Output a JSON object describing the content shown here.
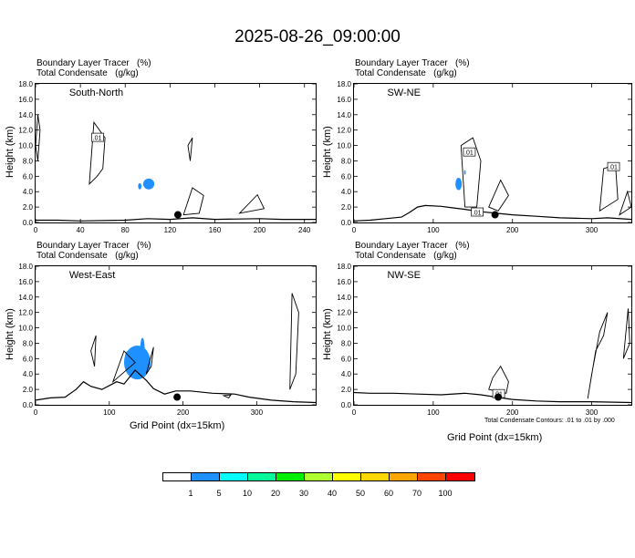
{
  "title": "2025-08-26_09:00:00",
  "panel_header": {
    "line1": "Boundary Layer Tracer   (%)",
    "line2": "Total Condensate   (g/kg)"
  },
  "y_axis_title": "Height (km)",
  "x_axis_title": "Grid Point (dx=15km)",
  "footnote": "Total Condensate Contours: .01 to .01 by .000",
  "colorbar": {
    "colors": [
      "#ffffff",
      "#1e90ff",
      "#00ffff",
      "#00fa9a",
      "#00ee00",
      "#adff2f",
      "#ffff00",
      "#ffd700",
      "#ffa500",
      "#ff4500",
      "#ff0000"
    ],
    "labels": [
      "1",
      "5",
      "10",
      "20",
      "30",
      "40",
      "50",
      "60",
      "70",
      "100"
    ]
  },
  "chart_data": [
    {
      "type": "contour",
      "panel_label": "South-North",
      "xlim": [
        0,
        250
      ],
      "ylim": [
        0,
        18
      ],
      "xticks": [
        "0",
        "40",
        "80",
        "120",
        "160",
        "200",
        "240"
      ],
      "yticks": [
        "0.0",
        "2.0",
        "4.0",
        "6.0",
        "8.0",
        "10.0",
        "12.0",
        "14.0",
        "16.0",
        "18.0"
      ],
      "contour_labels": [
        {
          "text": ".01",
          "x": 55,
          "y": 11
        }
      ],
      "marker": {
        "x": 127,
        "y": 1.0
      },
      "tracer_blobs": [
        {
          "x": 101,
          "y": 5.0,
          "rx": 5,
          "ry": 0.7
        },
        {
          "x": 93,
          "y": 4.7,
          "rx": 1.5,
          "ry": 0.4
        }
      ]
    },
    {
      "type": "contour",
      "panel_label": "SW-NE",
      "xlim": [
        0,
        350
      ],
      "ylim": [
        0,
        18
      ],
      "xticks": [
        "0",
        "100",
        "200",
        "300"
      ],
      "yticks": [
        "0.0",
        "2.0",
        "4.0",
        "6.0",
        "8.0",
        "10.0",
        "12.0",
        "14.0",
        "16.0",
        "18.0"
      ],
      "contour_labels": [
        {
          "text": ".01",
          "x": 155,
          "y": 1.3
        },
        {
          "text": ".01",
          "x": 145,
          "y": 9.1
        },
        {
          "text": ".01",
          "x": 327,
          "y": 7.2
        }
      ],
      "marker": {
        "x": 178,
        "y": 1.0
      },
      "tracer_blobs": [
        {
          "x": 132,
          "y": 5.0,
          "rx": 4,
          "ry": 0.8
        },
        {
          "x": 140,
          "y": 6.5,
          "rx": 1,
          "ry": 0.3
        }
      ]
    },
    {
      "type": "contour",
      "panel_label": "West-East",
      "xlim": [
        0,
        380
      ],
      "ylim": [
        0,
        18
      ],
      "xticks": [
        "0",
        "100",
        "200",
        "300"
      ],
      "yticks": [
        "0.0",
        "2.0",
        "4.0",
        "6.0",
        "8.0",
        "10.0",
        "12.0",
        "14.0",
        "16.0",
        "18.0"
      ],
      "contour_labels": [],
      "marker": {
        "x": 192,
        "y": 1.0
      },
      "tracer_blobs": [
        {
          "x": 138,
          "y": 5.5,
          "rx": 18,
          "ry": 2.2
        },
        {
          "x": 125,
          "y": 6.0,
          "rx": 4,
          "ry": 1.0
        },
        {
          "x": 145,
          "y": 7.3,
          "rx": 3,
          "ry": 1.4
        }
      ]
    },
    {
      "type": "contour",
      "panel_label": "NW-SE",
      "xlim": [
        0,
        350
      ],
      "ylim": [
        0,
        18
      ],
      "xticks": [
        "0",
        "100",
        "200",
        "300"
      ],
      "yticks": [
        "0.0",
        "2.0",
        "4.0",
        "6.0",
        "8.0",
        "10.0",
        "12.0",
        "14.0",
        "16.0",
        "18.0"
      ],
      "contour_labels": [
        {
          "text": ".01",
          "x": 182,
          "y": 1.4
        }
      ],
      "marker": {
        "x": 182,
        "y": 1.0
      },
      "tracer_blobs": []
    }
  ]
}
